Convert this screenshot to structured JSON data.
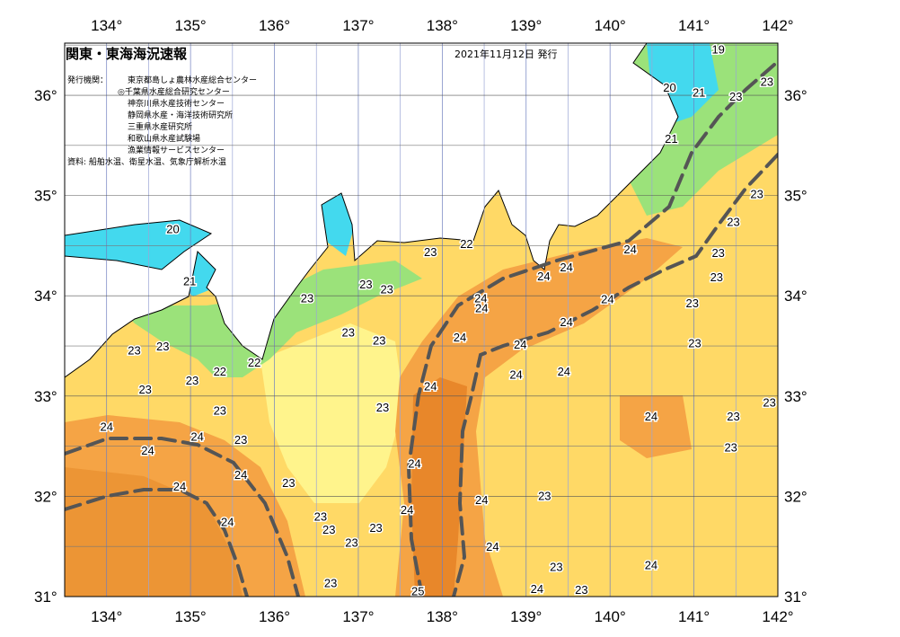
{
  "header": {
    "title": "関東・東海海況速報",
    "date": "2021年11月12日 発行",
    "issuer_label": "発行機関：",
    "organizations": [
      "東京都島しょ農林水産総合センター",
      "◎千葉県水産総合研究センター",
      "神奈川県水産技術センター",
      "静岡県水産・海洋技術研究所",
      "三重県水産研究所",
      "和歌山県水産試験場",
      "漁業情報サービスセンター"
    ],
    "source": "資料: 船舶水温、衛星水温、気象庁解析水温"
  },
  "map": {
    "type": "sea surface temperature chart",
    "lon_range": [
      133.5,
      142
    ],
    "lat_range": [
      31,
      36.52
    ],
    "lon_ticks": [
      "134°",
      "135°",
      "136°",
      "137°",
      "138°",
      "139°",
      "140°",
      "141°",
      "142°"
    ],
    "lat_ticks": [
      "36°",
      "35°",
      "34°",
      "33°",
      "32°",
      "31°"
    ],
    "colors": {
      "t25": "#e8872a",
      "t24": "#f5a445",
      "t23": "#ffd966",
      "t22_light": "#fff48c",
      "t22": "#9be27a",
      "t21": "#5fd3a0",
      "t20": "#43d9ee",
      "land": "#ffffff",
      "kuroshio": "#555555"
    },
    "isotherm_labels": [
      {
        "t": "19",
        "lon": 141.29,
        "lat": 36.46
      },
      {
        "t": "20",
        "lon": 140.71,
        "lat": 36.08
      },
      {
        "t": "21",
        "lon": 141.06,
        "lat": 36.03
      },
      {
        "t": "23",
        "lon": 141.5,
        "lat": 35.99
      },
      {
        "t": "23",
        "lon": 141.87,
        "lat": 36.14
      },
      {
        "t": "21",
        "lon": 140.73,
        "lat": 35.57
      },
      {
        "t": "23",
        "lon": 141.75,
        "lat": 35.02
      },
      {
        "t": "23",
        "lon": 141.47,
        "lat": 34.74
      },
      {
        "t": "22",
        "lon": 138.29,
        "lat": 34.52
      },
      {
        "t": "23",
        "lon": 137.86,
        "lat": 34.44
      },
      {
        "t": "24",
        "lon": 140.24,
        "lat": 34.47
      },
      {
        "t": "23",
        "lon": 141.29,
        "lat": 34.43
      },
      {
        "t": "24",
        "lon": 139.48,
        "lat": 34.29
      },
      {
        "t": "24",
        "lon": 139.21,
        "lat": 34.2
      },
      {
        "t": "23",
        "lon": 141.27,
        "lat": 34.19
      },
      {
        "t": "23",
        "lon": 137.09,
        "lat": 34.12
      },
      {
        "t": "23",
        "lon": 137.34,
        "lat": 34.07
      },
      {
        "t": "23",
        "lon": 136.39,
        "lat": 33.98
      },
      {
        "t": "24",
        "lon": 138.46,
        "lat": 33.98
      },
      {
        "t": "24",
        "lon": 138.47,
        "lat": 33.88
      },
      {
        "t": "24",
        "lon": 139.97,
        "lat": 33.97
      },
      {
        "t": "23",
        "lon": 140.98,
        "lat": 33.93
      },
      {
        "t": "24",
        "lon": 139.48,
        "lat": 33.74
      },
      {
        "t": "20",
        "lon": 134.79,
        "lat": 34.67
      },
      {
        "t": "21",
        "lon": 134.99,
        "lat": 34.15
      },
      {
        "t": "23",
        "lon": 136.88,
        "lat": 33.64
      },
      {
        "t": "23",
        "lon": 137.25,
        "lat": 33.56
      },
      {
        "t": "24",
        "lon": 138.21,
        "lat": 33.59
      },
      {
        "t": "24",
        "lon": 138.93,
        "lat": 33.52
      },
      {
        "t": "23",
        "lon": 141.01,
        "lat": 33.53
      },
      {
        "t": "23",
        "lon": 134.33,
        "lat": 33.46
      },
      {
        "t": "23",
        "lon": 134.67,
        "lat": 33.5
      },
      {
        "t": "22",
        "lon": 135.76,
        "lat": 33.34
      },
      {
        "t": "22",
        "lon": 135.35,
        "lat": 33.25
      },
      {
        "t": "24",
        "lon": 138.88,
        "lat": 33.22
      },
      {
        "t": "24",
        "lon": 139.45,
        "lat": 33.25
      },
      {
        "t": "23",
        "lon": 135.02,
        "lat": 33.16
      },
      {
        "t": "23",
        "lon": 134.46,
        "lat": 33.07
      },
      {
        "t": "24",
        "lon": 137.86,
        "lat": 33.1
      },
      {
        "t": "23",
        "lon": 137.29,
        "lat": 32.89
      },
      {
        "t": "23",
        "lon": 141.9,
        "lat": 32.94
      },
      {
        "t": "23",
        "lon": 135.35,
        "lat": 32.86
      },
      {
        "t": "24",
        "lon": 134.0,
        "lat": 32.7
      },
      {
        "t": "24",
        "lon": 140.49,
        "lat": 32.8
      },
      {
        "t": "23",
        "lon": 141.47,
        "lat": 32.8
      },
      {
        "t": "24",
        "lon": 135.08,
        "lat": 32.6
      },
      {
        "t": "23",
        "lon": 135.6,
        "lat": 32.57
      },
      {
        "t": "24",
        "lon": 134.49,
        "lat": 32.46
      },
      {
        "t": "23",
        "lon": 141.44,
        "lat": 32.49
      },
      {
        "t": "24",
        "lon": 137.67,
        "lat": 32.33
      },
      {
        "t": "24",
        "lon": 135.6,
        "lat": 32.22
      },
      {
        "t": "23",
        "lon": 136.17,
        "lat": 32.14
      },
      {
        "t": "24",
        "lon": 134.87,
        "lat": 32.1
      },
      {
        "t": "24",
        "lon": 138.47,
        "lat": 31.97
      },
      {
        "t": "23",
        "lon": 139.22,
        "lat": 32.01
      },
      {
        "t": "24",
        "lon": 137.58,
        "lat": 31.87
      },
      {
        "t": "23",
        "lon": 136.55,
        "lat": 31.8
      },
      {
        "t": "24",
        "lon": 135.44,
        "lat": 31.75
      },
      {
        "t": "23",
        "lon": 136.65,
        "lat": 31.67
      },
      {
        "t": "23",
        "lon": 137.21,
        "lat": 31.69
      },
      {
        "t": "23",
        "lon": 136.92,
        "lat": 31.54
      },
      {
        "t": "24",
        "lon": 138.6,
        "lat": 31.5
      },
      {
        "t": "23",
        "lon": 139.36,
        "lat": 31.3
      },
      {
        "t": "24",
        "lon": 140.49,
        "lat": 31.32
      },
      {
        "t": "23",
        "lon": 136.67,
        "lat": 31.14
      },
      {
        "t": "24",
        "lon": 139.13,
        "lat": 31.08
      },
      {
        "t": "25",
        "lon": 137.71,
        "lat": 31.06
      },
      {
        "t": "23",
        "lon": 139.66,
        "lat": 31.07
      }
    ]
  }
}
